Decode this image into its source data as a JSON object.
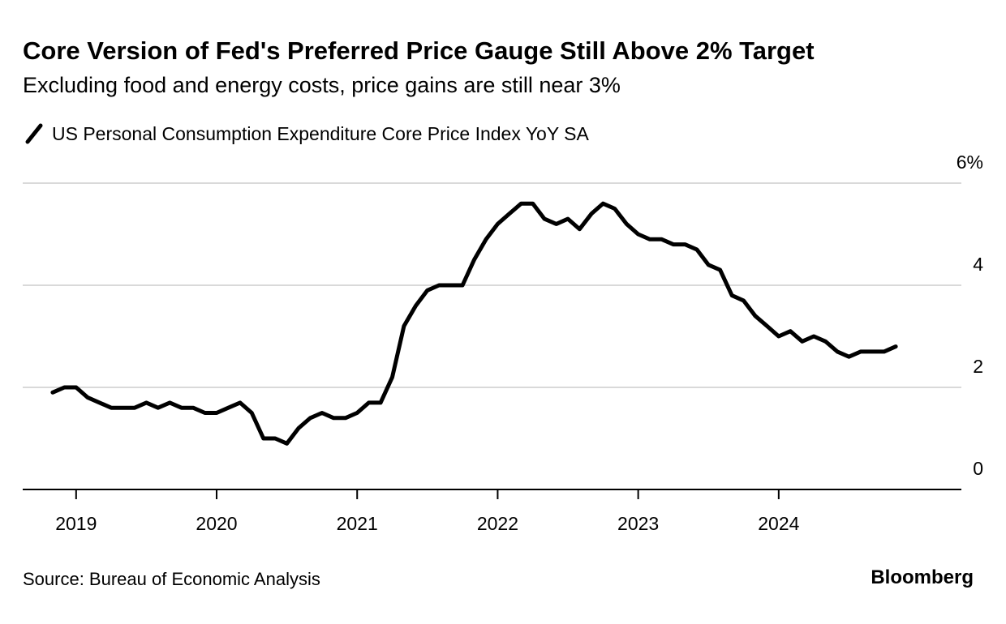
{
  "chart_data": {
    "type": "line",
    "title": "Core Version of Fed's Preferred Price Gauge Still Above 2% Target",
    "subtitle": "Excluding food and energy costs, price gains are still near 3%",
    "source": "Source: Bureau of Economic Analysis",
    "brand": "Bloomberg",
    "x": [
      2018.833,
      2018.917,
      2019,
      2019.083,
      2019.167,
      2019.25,
      2019.333,
      2019.417,
      2019.5,
      2019.583,
      2019.667,
      2019.75,
      2019.833,
      2019.917,
      2020,
      2020.083,
      2020.167,
      2020.25,
      2020.333,
      2020.417,
      2020.5,
      2020.583,
      2020.667,
      2020.75,
      2020.833,
      2020.917,
      2021,
      2021.083,
      2021.167,
      2021.25,
      2021.333,
      2021.417,
      2021.5,
      2021.583,
      2021.667,
      2021.75,
      2021.833,
      2021.917,
      2022,
      2022.083,
      2022.167,
      2022.25,
      2022.333,
      2022.417,
      2022.5,
      2022.583,
      2022.667,
      2022.75,
      2022.833,
      2022.917,
      2023,
      2023.083,
      2023.167,
      2023.25,
      2023.333,
      2023.417,
      2023.5,
      2023.583,
      2023.667,
      2023.75,
      2023.833,
      2023.917,
      2024,
      2024.083,
      2024.167,
      2024.25,
      2024.333,
      2024.417,
      2024.5,
      2024.583,
      2024.667,
      2024.75,
      2024.833
    ],
    "series": [
      {
        "name": "US Personal Consumption Expenditure Core Price Index YoY SA",
        "color": "#000000",
        "values": [
          1.9,
          2.0,
          2.0,
          1.8,
          1.7,
          1.6,
          1.6,
          1.6,
          1.7,
          1.6,
          1.7,
          1.6,
          1.6,
          1.5,
          1.5,
          1.6,
          1.7,
          1.5,
          1.0,
          1.0,
          0.9,
          1.2,
          1.4,
          1.5,
          1.4,
          1.4,
          1.5,
          1.7,
          1.7,
          2.2,
          3.2,
          3.6,
          3.9,
          4.0,
          4.0,
          4.0,
          4.5,
          4.9,
          5.2,
          5.4,
          5.6,
          5.6,
          5.3,
          5.2,
          5.3,
          5.1,
          5.4,
          5.6,
          5.5,
          5.2,
          5.0,
          4.9,
          4.9,
          4.8,
          4.8,
          4.7,
          4.4,
          4.3,
          3.8,
          3.7,
          3.4,
          3.2,
          3.0,
          3.1,
          2.9,
          3.0,
          2.9,
          2.7,
          2.6,
          2.7,
          2.7,
          2.7,
          2.8
        ]
      }
    ],
    "xlim": [
      2018.62,
      2025.3
    ],
    "xticks": [
      2019,
      2020,
      2021,
      2022,
      2023,
      2024
    ],
    "ylim": [
      0,
      6
    ],
    "yticks": [
      0,
      2,
      4,
      {
        "value": 6,
        "label": "6%"
      }
    ],
    "grid": true
  }
}
